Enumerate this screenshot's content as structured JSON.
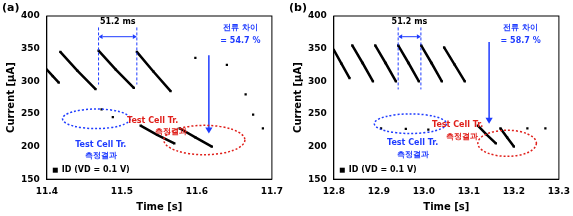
{
  "chart_data": [
    {
      "type": "scatter",
      "title": "(a)",
      "x_label": "Time [s]",
      "y_label": "Current [μA]",
      "xlim": [
        11.4,
        11.7
      ],
      "xticks": [
        11.4,
        11.5,
        11.6,
        11.7
      ],
      "ylim": [
        150,
        400
      ],
      "yticks": [
        150,
        200,
        250,
        300,
        350,
        400
      ],
      "legend": "lower left",
      "series": [
        {
          "name": "ID (VD = 0.1 V)",
          "color": "#000000",
          "marker": "square",
          "line_style": "solid",
          "x": [
            11.4,
            11.408,
            11.416,
            null,
            11.418,
            11.441,
            11.465,
            null,
            11.469,
            11.492,
            11.516,
            null,
            11.52,
            11.542,
            11.565,
            null,
            11.473,
            null,
            11.488,
            null,
            11.525,
            11.547,
            11.57,
            null,
            11.577,
            11.598,
            11.62,
            null,
            11.598,
            null,
            11.64,
            null,
            11.665,
            null,
            11.675,
            null,
            11.688
          ],
          "values": [
            318,
            308,
            298,
            null,
            345,
            316,
            288,
            null,
            347,
            318,
            290,
            null,
            345,
            315,
            285,
            null,
            257,
            null,
            245,
            null,
            232,
            218,
            205,
            null,
            228,
            214,
            200,
            null,
            336,
            null,
            325,
            null,
            280,
            null,
            249,
            null,
            228
          ]
        }
      ],
      "annotations": [
        "51.2 ms",
        "전류 차이",
        "= 54.7 %",
        "Test Cell Tr.",
        "측정결과",
        "Test Cell Tr.",
        "측정결과"
      ]
    },
    {
      "type": "scatter",
      "title": "(b)",
      "x_label": "Time [s]",
      "y_label": "Current [μA]",
      "xlim": [
        12.8,
        13.3
      ],
      "xticks": [
        12.8,
        12.9,
        {
          "value": 13,
          "label": "13.0"
        },
        13.1,
        13.2,
        13.3
      ],
      "ylim": [
        150,
        400
      ],
      "yticks": [
        150,
        200,
        250,
        300,
        350,
        400
      ],
      "legend": "lower left",
      "series": [
        {
          "name": "ID (VD = 0.1 V)",
          "color": "#000000",
          "marker": "square",
          "line_style": "solid",
          "x": [
            12.8,
            12.817,
            12.835,
            null,
            12.841,
            12.864,
            12.887,
            null,
            12.892,
            12.915,
            12.938,
            null,
            12.943,
            12.966,
            12.989,
            null,
            12.994,
            13.017,
            13.04,
            null,
            13.045,
            13.068,
            13.091,
            null,
            12.905,
            null,
            12.96,
            null,
            13.01,
            null,
            13.12,
            13.14,
            13.16,
            null,
            13.17,
            13.185,
            13.2,
            null,
            13.23,
            null,
            13.27
          ],
          "values": [
            348,
            327,
            305,
            null,
            355,
            328,
            300,
            null,
            355,
            328,
            300,
            null,
            355,
            328,
            300,
            null,
            355,
            328,
            300,
            null,
            352,
            326,
            300,
            null,
            228,
            null,
            227,
            null,
            226,
            null,
            232,
            218,
            205,
            null,
            228,
            214,
            200,
            null,
            228,
            null,
            228
          ]
        }
      ],
      "annotations": [
        "51.2 ms",
        "전류 차이",
        "= 58.7 %",
        "Test Cell Tr.",
        "측정결과",
        "Test Cell Tr.",
        "측정결과"
      ]
    }
  ]
}
